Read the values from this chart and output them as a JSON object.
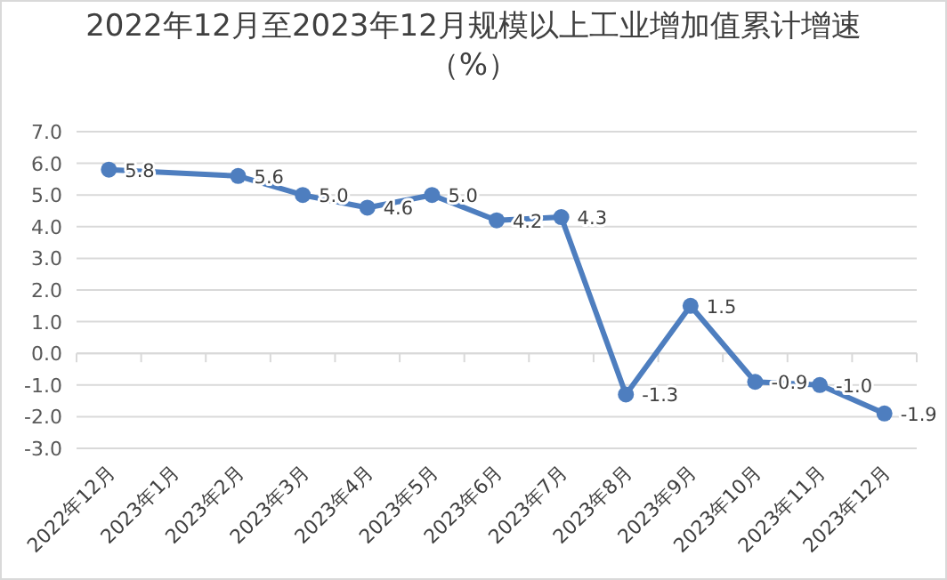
{
  "chart_data": {
    "type": "line",
    "title": "2022年12月至2023年12月规模以上工业增加值累计增速（%）",
    "categories": [
      "2022年12月",
      "2023年1月",
      "2023年2月",
      "2023年3月",
      "2023年4月",
      "2023年5月",
      "2023年6月",
      "2023年7月",
      "2023年8月",
      "2023年9月",
      "2023年10月",
      "2023年11月",
      "2023年12月"
    ],
    "series": [
      {
        "color": "#4e7ebf",
        "values": [
          5.8,
          null,
          5.6,
          5.0,
          4.6,
          5.0,
          4.2,
          4.3,
          -1.3,
          1.5,
          -0.9,
          -1.0,
          -1.9
        ],
        "value_labels": [
          "5.8",
          null,
          "5.6",
          "5.0",
          "4.6",
          "5.0",
          "4.2",
          "4.3",
          "-1.3",
          "1.5",
          "-0.9",
          "-1.0",
          "-1.9"
        ]
      }
    ],
    "ylim": [
      -3,
      7
    ],
    "yticks": [
      {
        "value": 7,
        "label": "7.0"
      },
      {
        "value": 6,
        "label": "6.0"
      },
      {
        "value": 5,
        "label": "5.0"
      },
      {
        "value": 4,
        "label": "4.0"
      },
      {
        "value": 3,
        "label": "3.0"
      },
      {
        "value": 2,
        "label": "2.0"
      },
      {
        "value": 1,
        "label": "1.0"
      },
      {
        "value": 0,
        "label": "0.0"
      },
      {
        "value": -1,
        "label": "-1.0"
      },
      {
        "value": -2,
        "label": "-2.0"
      },
      {
        "value": -3,
        "label": "-3.0"
      }
    ],
    "grid": "y",
    "marker": "circle",
    "line_style": "solid"
  }
}
